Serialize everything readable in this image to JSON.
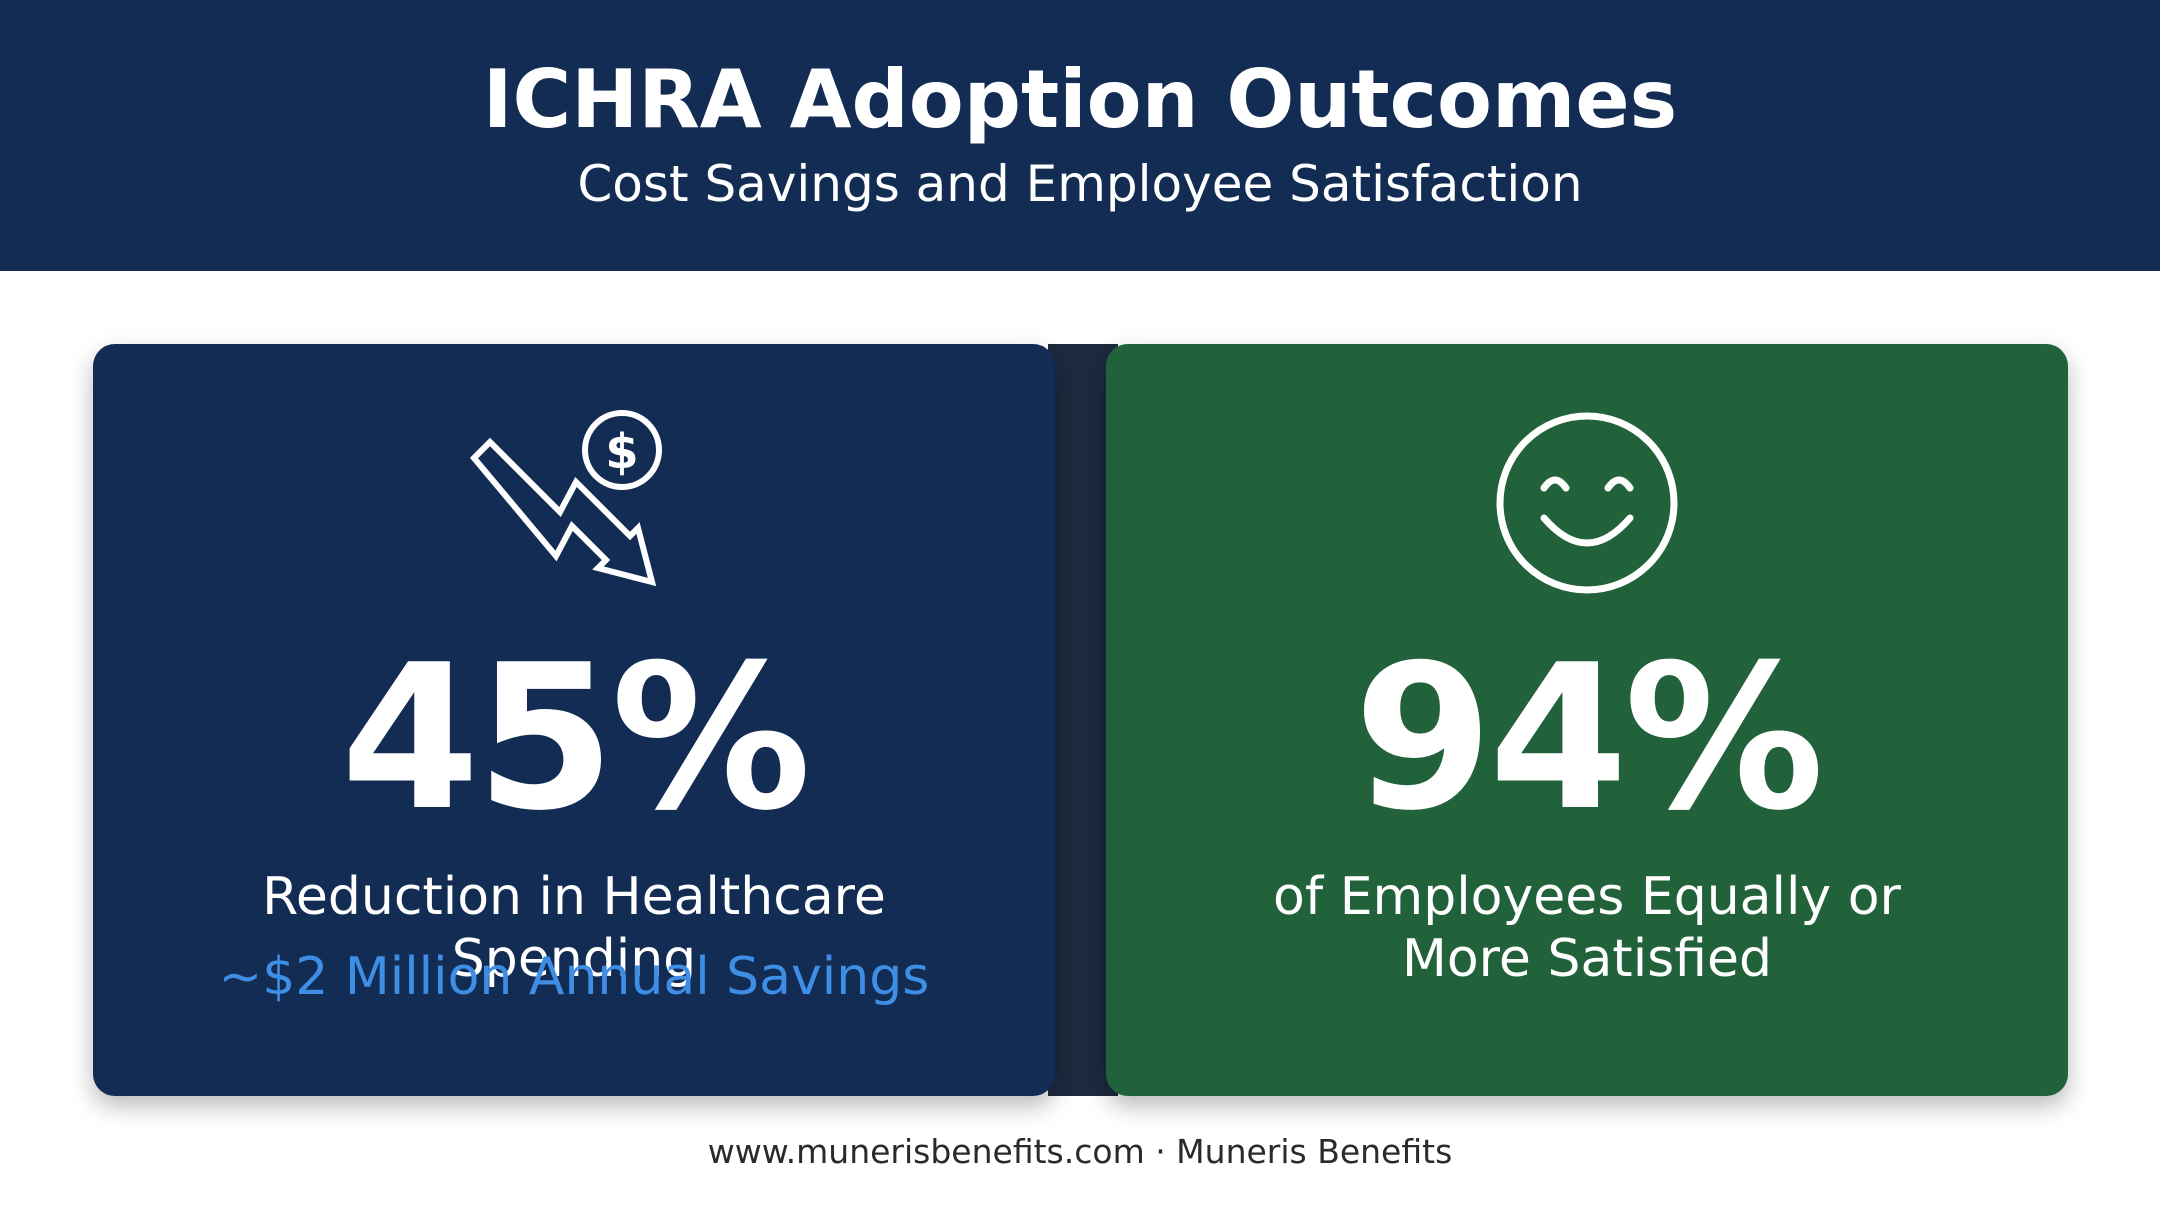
{
  "header": {
    "title": "ICHRA Adoption Outcomes",
    "subtitle": "Cost Savings and Employee Satisfaction"
  },
  "cards": [
    {
      "icon": "dollar-downtrend-icon",
      "stat": "45%",
      "label": "Reduction in Healthcare Spending",
      "sublabel": "~$2 Million Annual Savings",
      "background": "#132c53",
      "accent": "#3f8ee6"
    },
    {
      "icon": "smiley-face-icon",
      "stat": "94%",
      "label_line1": "of Employees Equally or",
      "label_line2": "More Satisfied",
      "background": "#22623a"
    }
  ],
  "footer": {
    "text": "www.munerisbenefits.com · Muneris Benefits"
  }
}
